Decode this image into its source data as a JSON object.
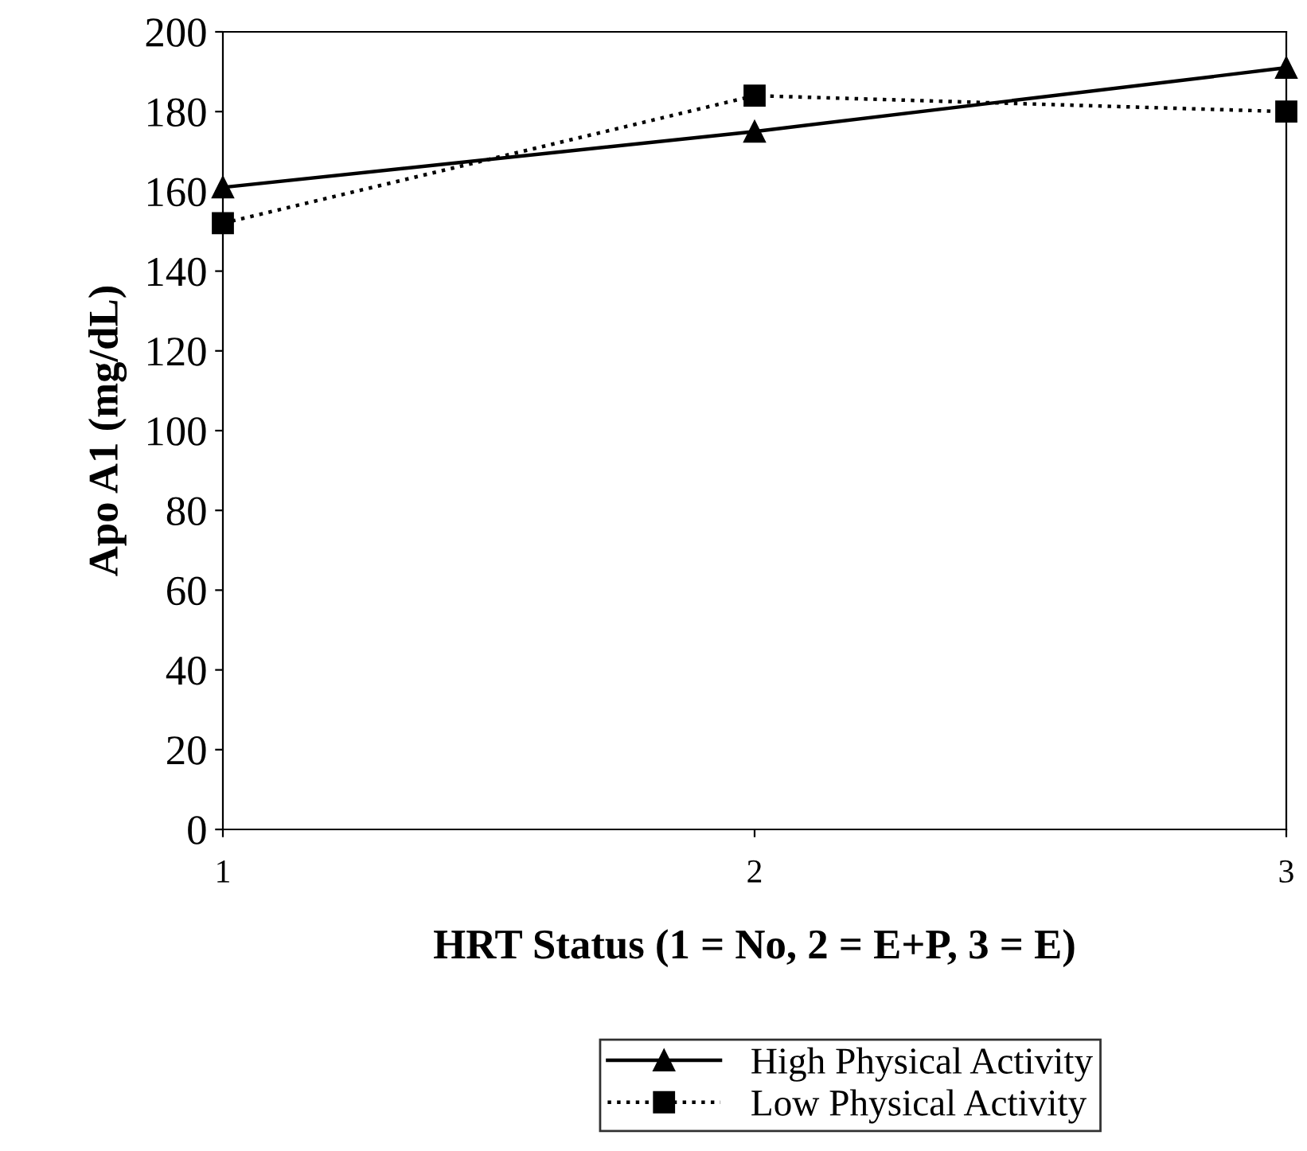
{
  "chart_data": {
    "type": "line",
    "xlabel": "HRT Status (1 = No, 2 = E+P, 3 = E)",
    "ylabel": "Apo A1 (mg/dL)",
    "x": [
      1,
      2,
      3
    ],
    "xlim": [
      1,
      3
    ],
    "xticks": [
      1,
      2,
      3
    ],
    "ylim": [
      0,
      200
    ],
    "yticks": [
      0,
      20,
      40,
      60,
      80,
      100,
      120,
      140,
      160,
      180,
      200
    ],
    "series": [
      {
        "name": "High Physical Activity",
        "color": "#000000",
        "values": [
          161,
          175,
          191
        ],
        "marker": "triangle",
        "line_style": "solid"
      },
      {
        "name": "Low Physical Activity",
        "color": "#000000",
        "values": [
          152,
          184,
          180
        ],
        "marker": "square",
        "line_style": "dotted"
      }
    ],
    "grid": false,
    "legend": "bottom"
  }
}
